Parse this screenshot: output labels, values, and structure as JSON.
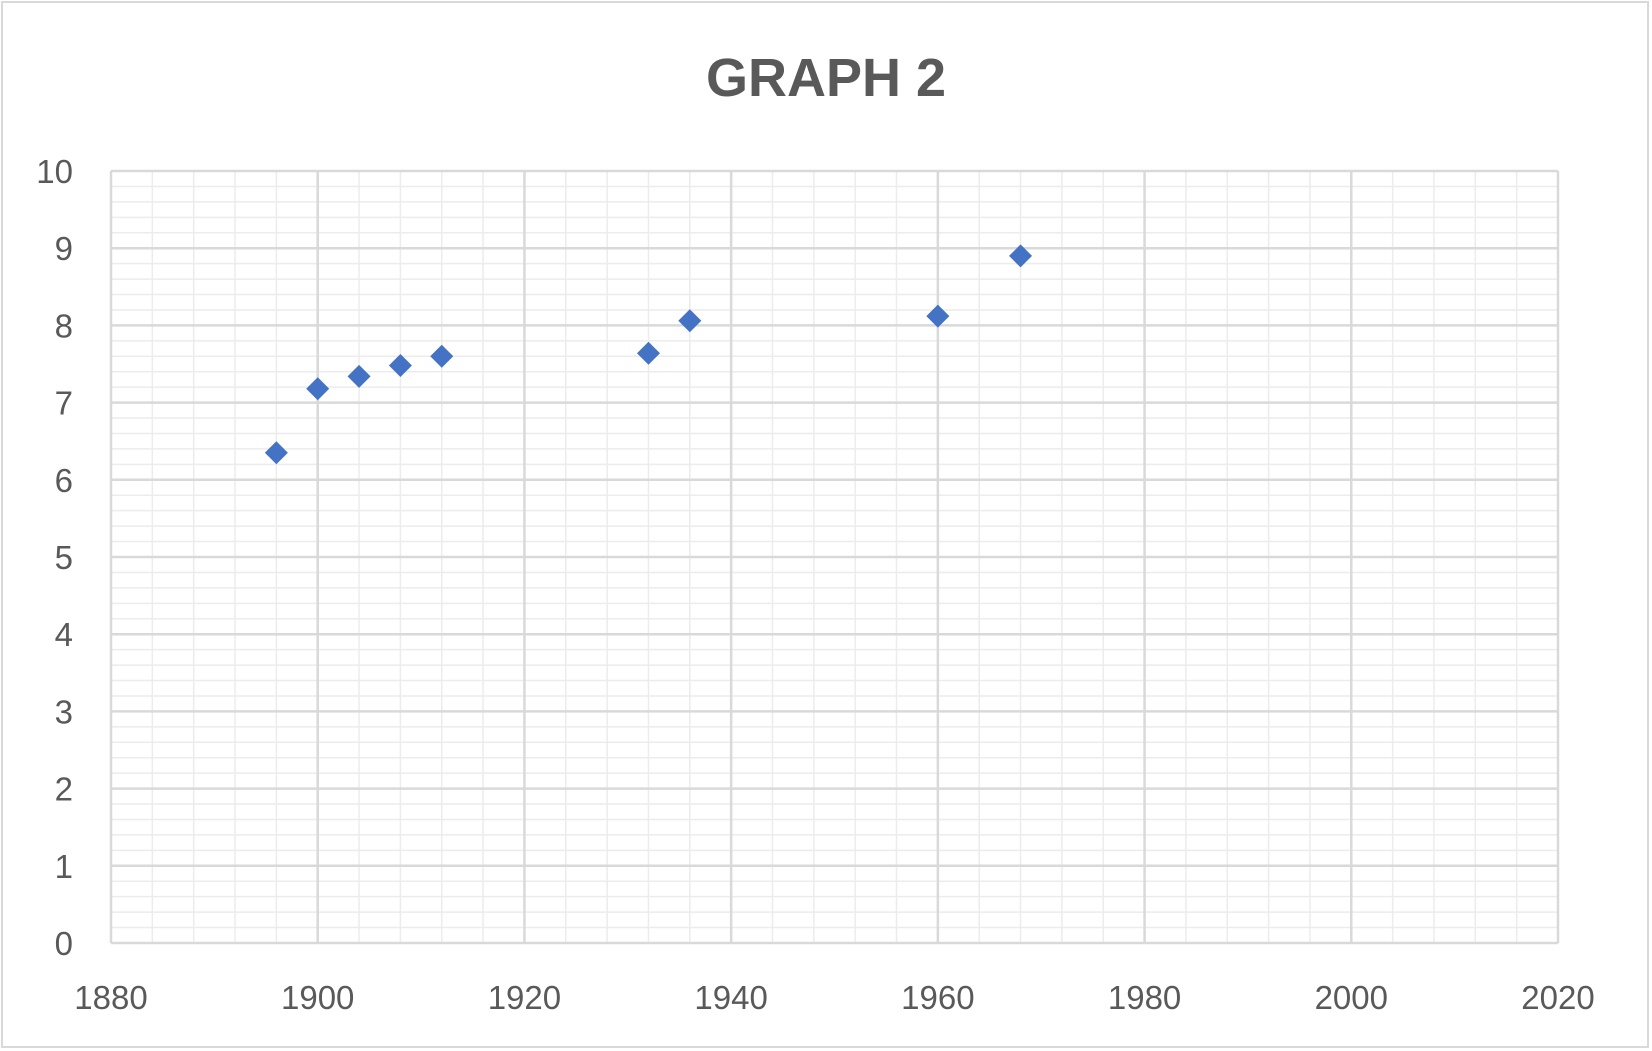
{
  "chart_data": {
    "type": "scatter",
    "title": "GRAPH 2",
    "xlabel": "",
    "ylabel": "",
    "xlim": [
      1880,
      2020
    ],
    "ylim": [
      0,
      10
    ],
    "x_ticks": [
      1880,
      1900,
      1920,
      1940,
      1960,
      1980,
      2000,
      2020
    ],
    "y_ticks": [
      0,
      1,
      2,
      3,
      4,
      5,
      6,
      7,
      8,
      9,
      10
    ],
    "x_minor_step": 4,
    "y_minor_step": 0.2,
    "grid": true,
    "legend": "none",
    "marker": "diamond",
    "colors": {
      "marker": "#4472C4",
      "major_grid": "#d9d9d9",
      "minor_grid": "#ececec",
      "text": "#595959"
    },
    "series": [
      {
        "x": [
          1896,
          1900,
          1904,
          1908,
          1912,
          1932,
          1936,
          1960,
          1968
        ],
        "y": [
          6.35,
          7.18,
          7.34,
          7.48,
          7.6,
          7.64,
          8.06,
          8.12,
          8.9
        ]
      }
    ]
  }
}
